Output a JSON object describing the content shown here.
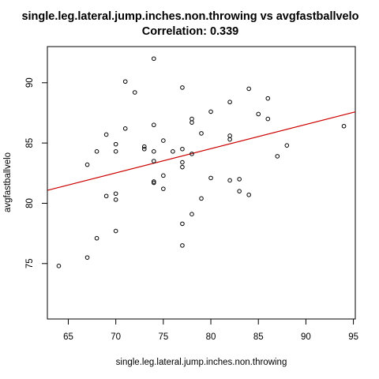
{
  "chart_data": {
    "type": "scatter",
    "title": "single.leg.lateral.jump.inches.non.throwing vs avgfastballvelo",
    "subtitle": "Correlation: 0.339",
    "xlabel": "single.leg.lateral.jump.inches.non.throwing",
    "ylabel": "avgfastballvelo",
    "xlim": [
      62.8,
      95.2
    ],
    "ylim": [
      70.4,
      93.0
    ],
    "x_ticks": [
      65,
      70,
      75,
      80,
      85,
      90,
      95
    ],
    "y_ticks": [
      75,
      80,
      85,
      90
    ],
    "grid": false,
    "colors": {
      "points": "#000000",
      "fit_line": "#cc0000",
      "frame": "#000000"
    },
    "fit_line": {
      "intercept": 68.45,
      "slope": 0.201
    },
    "points": [
      {
        "x": 64,
        "y": 74.8
      },
      {
        "x": 67,
        "y": 75.5
      },
      {
        "x": 67,
        "y": 83.2
      },
      {
        "x": 68,
        "y": 77.1
      },
      {
        "x": 68,
        "y": 84.3
      },
      {
        "x": 69,
        "y": 80.6
      },
      {
        "x": 69,
        "y": 85.7
      },
      {
        "x": 70,
        "y": 77.7
      },
      {
        "x": 70,
        "y": 80.3
      },
      {
        "x": 70,
        "y": 80.8
      },
      {
        "x": 70,
        "y": 84.3
      },
      {
        "x": 70,
        "y": 84.9
      },
      {
        "x": 71,
        "y": 86.2
      },
      {
        "x": 71,
        "y": 90.1
      },
      {
        "x": 72,
        "y": 89.2
      },
      {
        "x": 73,
        "y": 84.5
      },
      {
        "x": 73,
        "y": 84.7
      },
      {
        "x": 74,
        "y": 81.7
      },
      {
        "x": 74,
        "y": 81.8
      },
      {
        "x": 74,
        "y": 83.5
      },
      {
        "x": 74,
        "y": 84.3
      },
      {
        "x": 74,
        "y": 86.5
      },
      {
        "x": 74,
        "y": 92.0
      },
      {
        "x": 75,
        "y": 81.2
      },
      {
        "x": 75,
        "y": 82.3
      },
      {
        "x": 75,
        "y": 85.2
      },
      {
        "x": 76,
        "y": 84.3
      },
      {
        "x": 77,
        "y": 76.5
      },
      {
        "x": 77,
        "y": 78.3
      },
      {
        "x": 77,
        "y": 83.0
      },
      {
        "x": 77,
        "y": 83.4
      },
      {
        "x": 77,
        "y": 84.5
      },
      {
        "x": 77,
        "y": 89.6
      },
      {
        "x": 78,
        "y": 79.1
      },
      {
        "x": 78,
        "y": 84.1
      },
      {
        "x": 78,
        "y": 86.7
      },
      {
        "x": 78,
        "y": 87.0
      },
      {
        "x": 79,
        "y": 80.4
      },
      {
        "x": 79,
        "y": 85.8
      },
      {
        "x": 80,
        "y": 82.1
      },
      {
        "x": 80,
        "y": 87.6
      },
      {
        "x": 82,
        "y": 81.9
      },
      {
        "x": 82,
        "y": 85.3
      },
      {
        "x": 82,
        "y": 85.6
      },
      {
        "x": 82,
        "y": 88.4
      },
      {
        "x": 83,
        "y": 81.0
      },
      {
        "x": 83,
        "y": 82.0
      },
      {
        "x": 84,
        "y": 80.7
      },
      {
        "x": 84,
        "y": 89.5
      },
      {
        "x": 85,
        "y": 87.4
      },
      {
        "x": 86,
        "y": 87.0
      },
      {
        "x": 86,
        "y": 88.7
      },
      {
        "x": 87,
        "y": 83.9
      },
      {
        "x": 88,
        "y": 84.8
      },
      {
        "x": 94,
        "y": 86.4
      }
    ]
  }
}
